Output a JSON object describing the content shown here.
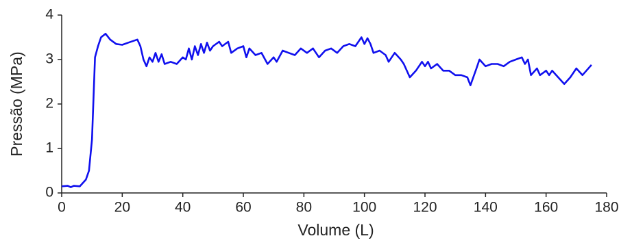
{
  "chart_data": {
    "type": "line",
    "xlabel": "Volume (L)",
    "ylabel": "Pressão (MPa)",
    "x": [
      0,
      2,
      3,
      4,
      6,
      8,
      9,
      10,
      11,
      12,
      13,
      14.5,
      16,
      18,
      20,
      22,
      25,
      26,
      27,
      28,
      29,
      30,
      31,
      32,
      33,
      34,
      36,
      38,
      40,
      41,
      42,
      43,
      44,
      45,
      46,
      47,
      48,
      49,
      50,
      52,
      53,
      55,
      56,
      58,
      60,
      61,
      62,
      64,
      66,
      68,
      70,
      71,
      73,
      75,
      77,
      79,
      81,
      83,
      85,
      87,
      89,
      91,
      93,
      95,
      97,
      99,
      100,
      101,
      102,
      103,
      105,
      107,
      108,
      110,
      112,
      113,
      115,
      117,
      119,
      120,
      121,
      122,
      124,
      126,
      128,
      130,
      132,
      134,
      135,
      137,
      138,
      140,
      142,
      144,
      146,
      148,
      150,
      152,
      153,
      154,
      155,
      157,
      158,
      160,
      161,
      162,
      164,
      166,
      168,
      170,
      172,
      175
    ],
    "values": [
      0.15,
      0.16,
      0.13,
      0.16,
      0.15,
      0.3,
      0.5,
      1.2,
      3.05,
      3.3,
      3.5,
      3.58,
      3.45,
      3.35,
      3.33,
      3.38,
      3.45,
      3.3,
      3.0,
      2.85,
      3.05,
      2.95,
      3.15,
      2.95,
      3.12,
      2.9,
      2.95,
      2.9,
      3.05,
      3.0,
      3.25,
      3.0,
      3.3,
      3.1,
      3.35,
      3.15,
      3.38,
      3.2,
      3.3,
      3.4,
      3.3,
      3.4,
      3.15,
      3.25,
      3.3,
      3.05,
      3.25,
      3.1,
      3.15,
      2.9,
      3.05,
      2.95,
      3.2,
      3.15,
      3.1,
      3.25,
      3.15,
      3.25,
      3.05,
      3.2,
      3.25,
      3.15,
      3.3,
      3.35,
      3.3,
      3.5,
      3.35,
      3.48,
      3.35,
      3.15,
      3.2,
      3.1,
      2.95,
      3.15,
      3.0,
      2.9,
      2.6,
      2.75,
      2.95,
      2.85,
      2.95,
      2.8,
      2.9,
      2.75,
      2.75,
      2.65,
      2.65,
      2.6,
      2.42,
      2.8,
      3.0,
      2.85,
      2.9,
      2.9,
      2.85,
      2.95,
      3.0,
      3.05,
      2.9,
      3.0,
      2.65,
      2.8,
      2.65,
      2.75,
      2.65,
      2.75,
      2.6,
      2.45,
      2.6,
      2.8,
      2.65,
      2.88
    ],
    "color": "#1010ee",
    "xlim": [
      0,
      180
    ],
    "xticks": [
      0,
      20,
      40,
      60,
      80,
      100,
      120,
      140,
      160,
      180
    ],
    "ylim": [
      0,
      4
    ],
    "yticks": [
      0,
      1,
      2,
      3,
      4
    ]
  }
}
